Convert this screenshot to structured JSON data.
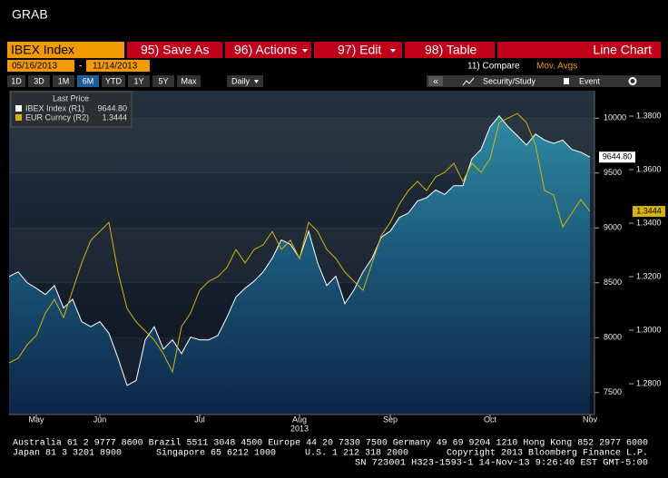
{
  "header": {
    "title": "GRAB"
  },
  "toolbar": {
    "security": "IBEX Index",
    "buttons": [
      "95) Save As",
      "96) Actions",
      "97) Edit",
      "98) Table"
    ],
    "chart_type": "Line Chart",
    "start_date": "05/16/2013",
    "date_separator": "-",
    "end_date": "11/14/2013",
    "compare": "11) Compare",
    "mov_avgs": "Mov. Avgs",
    "periods": [
      "1D",
      "3D",
      "1M",
      "6M",
      "YTD",
      "1Y",
      "5Y",
      "Max"
    ],
    "active_period": "6M",
    "frequency": "Daily",
    "security_study": "Security/Study",
    "event": "Event"
  },
  "chart_data": {
    "type": "line",
    "legend_title": "Last Price",
    "x_year_label": "2013",
    "categories": [
      null,
      null,
      null,
      "May",
      null,
      null,
      null,
      null,
      null,
      null,
      "Jun",
      null,
      null,
      null,
      null,
      null,
      null,
      null,
      null,
      null,
      null,
      "Jul",
      null,
      null,
      null,
      null,
      null,
      null,
      null,
      null,
      null,
      null,
      "Aug",
      null,
      null,
      null,
      null,
      null,
      null,
      null,
      null,
      null,
      "Sep",
      null,
      null,
      null,
      null,
      null,
      null,
      null,
      null,
      null,
      null,
      "Oct",
      null,
      null,
      null,
      null,
      null,
      null,
      null,
      null,
      null,
      null,
      "Nov"
    ],
    "series": [
      {
        "name": "IBEX Index (R1)",
        "color": "#ffffff",
        "axis": "y",
        "last_label": "9644.80",
        "values": [
          8558,
          8600,
          8500,
          8450,
          8393,
          8475,
          8270,
          8350,
          8145,
          8100,
          8145,
          8040,
          7815,
          7565,
          7610,
          7980,
          8100,
          7895,
          7980,
          7855,
          8005,
          7980,
          7980,
          8020,
          8185,
          8370,
          8450,
          8515,
          8600,
          8725,
          8890,
          8850,
          8725,
          8970,
          8680,
          8475,
          8560,
          8310,
          8435,
          8600,
          8725,
          8915,
          8970,
          9095,
          9135,
          9245,
          9275,
          9345,
          9305,
          9385,
          9385,
          9630,
          9715,
          9920,
          10020,
          9920,
          9840,
          9755,
          9855,
          9800,
          9770,
          9800,
          9715,
          9690,
          9644.8
        ]
      },
      {
        "name": "EUR Curncy (R2)",
        "color": "#d6b400",
        "axis": "y2",
        "last_label": "1.3444",
        "values": [
          1.2878,
          1.2895,
          1.2946,
          1.298,
          1.3064,
          1.3115,
          1.3047,
          1.3149,
          1.3251,
          1.3336,
          1.3369,
          1.3403,
          1.3217,
          1.3081,
          1.3031,
          1.2997,
          1.2963,
          1.2912,
          1.2844,
          1.3014,
          1.3064,
          1.3149,
          1.3183,
          1.32,
          1.3234,
          1.3302,
          1.3251,
          1.3302,
          1.3319,
          1.3369,
          1.3302,
          1.3336,
          1.3268,
          1.3403,
          1.3369,
          1.3302,
          1.3268,
          1.3217,
          1.3183,
          1.3149,
          1.3251,
          1.3353,
          1.3403,
          1.3471,
          1.3522,
          1.3556,
          1.3522,
          1.3573,
          1.359,
          1.3624,
          1.3556,
          1.3624,
          1.359,
          1.3641,
          1.3776,
          1.3793,
          1.381,
          1.3776,
          1.3692,
          1.3522,
          1.3505,
          1.3386,
          1.3437,
          1.3488,
          1.3444
        ]
      }
    ],
    "ylim": [
      7300,
      10250
    ],
    "yticks": [
      7500,
      8000,
      8500,
      9000,
      9500,
      10000
    ],
    "y2lim": [
      1.2685,
      1.3895
    ],
    "y2ticks": [
      {
        "value": 1.28,
        "label": "1.2800"
      },
      {
        "value": 1.3,
        "label": "1.3000"
      },
      {
        "value": 1.32,
        "label": "1.3200"
      },
      {
        "value": 1.34,
        "label": "1.3400"
      },
      {
        "value": 1.36,
        "label": "1.3600"
      },
      {
        "value": 1.38,
        "label": "1.3800"
      }
    ],
    "area_under": "IBEX Index (R1)",
    "grid": true
  },
  "footer": {
    "line1": "Australia 61 2 9777 8600 Brazil 5511 3048 4500 Europe 44 20 7330 7500 Germany 49 69 9204 1210 Hong Kong 852 2977 6000",
    "line2": [
      "Japan 81 3 3201 8900",
      "Singapore 65 6212 1000",
      "U.S. 1 212 318 2000",
      "Copyright 2013 Bloomberg Finance L.P."
    ],
    "line3": "SN 723001 H323-1593-1 14-Nov-13  9:26:40 EST  GMT-5:00"
  }
}
